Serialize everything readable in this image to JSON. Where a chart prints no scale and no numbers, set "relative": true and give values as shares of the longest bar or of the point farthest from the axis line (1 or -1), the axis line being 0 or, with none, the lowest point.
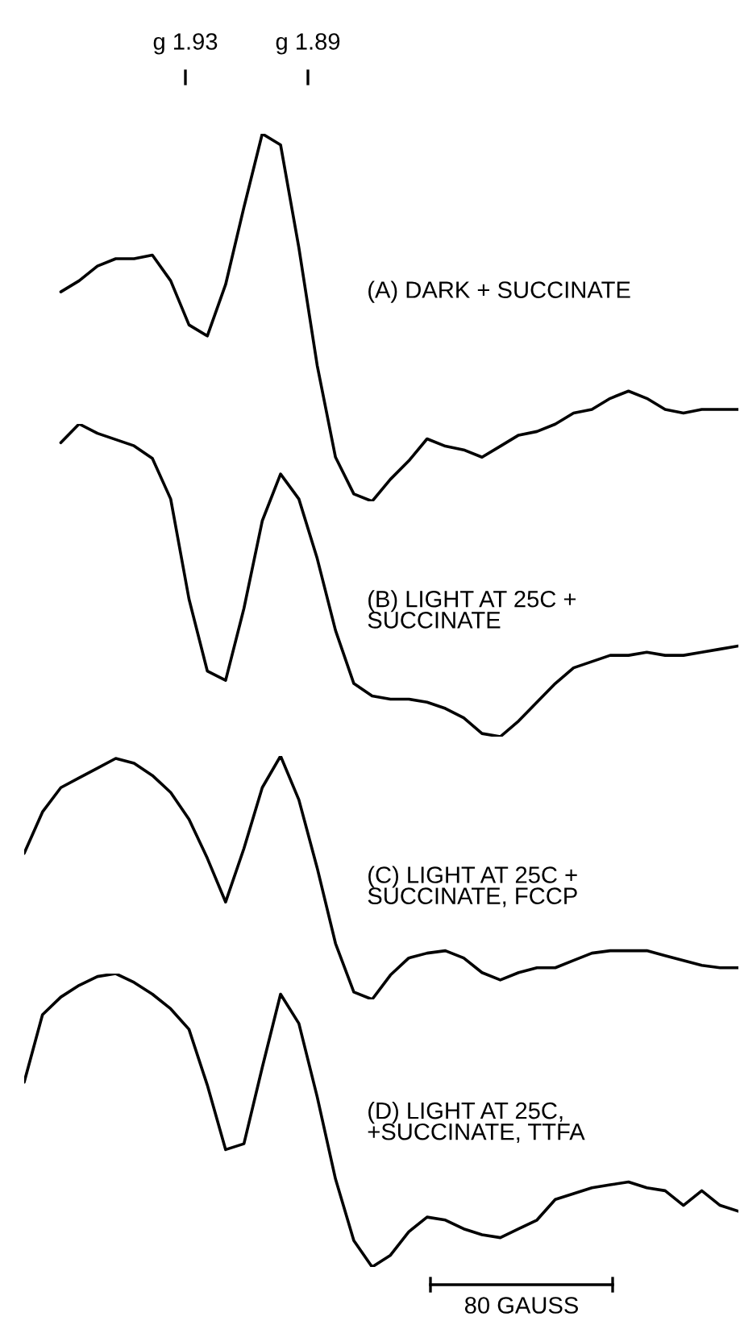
{
  "chart_data": [
    {
      "type": "line",
      "relative": true,
      "annotations": [
        "g 1.93",
        "g 1.89"
      ],
      "categories": [
        null,
        null,
        null,
        null,
        null,
        null,
        null,
        null,
        null,
        null,
        null,
        null,
        null,
        null,
        null,
        null,
        null,
        null,
        null,
        null,
        null,
        null,
        null,
        null,
        null,
        null,
        null,
        null,
        null,
        null,
        null,
        null,
        null,
        null,
        null,
        null,
        null,
        null,
        null,
        null
      ],
      "series": [
        {
          "name": "(A) DARK + SUCCINATE",
          "color": "#000000",
          "values": [
            null,
            null,
            0.57,
            0.6,
            0.64,
            0.66,
            0.66,
            0.67,
            0.6,
            0.48,
            0.45,
            0.59,
            0.8,
            1.0,
            0.97,
            0.69,
            0.37,
            0.12,
            0.02,
            0,
            0.06,
            0.11,
            0.17,
            0.15,
            0.14,
            0.12,
            0.15,
            0.18,
            0.19,
            0.21,
            0.24,
            0.25,
            0.28,
            0.3,
            0.28,
            0.25,
            0.24,
            0.25,
            0.25,
            0.25
          ]
        }
      ]
    },
    {
      "type": "line",
      "relative": true,
      "categories": [
        null,
        null,
        null,
        null,
        null,
        null,
        null,
        null,
        null,
        null,
        null,
        null,
        null,
        null,
        null,
        null,
        null,
        null,
        null,
        null,
        null,
        null,
        null,
        null,
        null,
        null,
        null,
        null,
        null,
        null,
        null,
        null,
        null,
        null,
        null,
        null,
        null,
        null,
        null,
        null
      ],
      "series": [
        {
          "name": "(B) LIGHT AT 25C +\nSUCCINATE",
          "color": "#000000",
          "values": [
            null,
            null,
            0.94,
            1.0,
            0.97,
            0.95,
            0.93,
            0.89,
            0.76,
            0.44,
            0.21,
            0.18,
            0.41,
            0.69,
            0.84,
            0.76,
            0.57,
            0.34,
            0.17,
            0.13,
            0.12,
            0.12,
            0.11,
            0.09,
            0.06,
            0.01,
            0,
            0.05,
            0.11,
            0.17,
            0.22,
            0.24,
            0.26,
            0.26,
            0.27,
            0.26,
            0.26,
            0.27,
            0.28,
            0.29
          ]
        }
      ]
    },
    {
      "type": "line",
      "relative": true,
      "categories": [
        null,
        null,
        null,
        null,
        null,
        null,
        null,
        null,
        null,
        null,
        null,
        null,
        null,
        null,
        null,
        null,
        null,
        null,
        null,
        null,
        null,
        null,
        null,
        null,
        null,
        null,
        null,
        null,
        null,
        null,
        null,
        null,
        null,
        null,
        null,
        null,
        null,
        null,
        null,
        null
      ],
      "series": [
        {
          "name": "(C) LIGHT AT 25C +\nSUCCINATE, FCCP",
          "color": "#000000",
          "values": [
            0.6,
            0.77,
            0.87,
            0.91,
            0.95,
            0.99,
            0.97,
            0.92,
            0.85,
            0.74,
            0.58,
            0.4,
            0.62,
            0.87,
            1.0,
            0.82,
            0.54,
            0.23,
            0.03,
            0,
            0.1,
            0.17,
            0.19,
            0.2,
            0.17,
            0.11,
            0.08,
            0.11,
            0.13,
            0.13,
            0.16,
            0.19,
            0.2,
            0.2,
            0.2,
            0.18,
            0.16,
            0.14,
            0.13,
            0.13
          ]
        }
      ]
    },
    {
      "type": "line",
      "relative": true,
      "annotations": [
        "80 GAUSS"
      ],
      "categories": [
        null,
        null,
        null,
        null,
        null,
        null,
        null,
        null,
        null,
        null,
        null,
        null,
        null,
        null,
        null,
        null,
        null,
        null,
        null,
        null,
        null,
        null,
        null,
        null,
        null,
        null,
        null,
        null,
        null,
        null,
        null,
        null,
        null,
        null,
        null,
        null,
        null,
        null,
        null,
        null
      ],
      "series": [
        {
          "name": "(D) LIGHT AT 25C,\n+SUCCINATE, TTFA",
          "color": "#000000",
          "values": [
            0.63,
            0.86,
            0.92,
            0.96,
            0.99,
            1.0,
            0.97,
            0.93,
            0.88,
            0.81,
            0.62,
            0.4,
            0.42,
            0.68,
            0.93,
            0.83,
            0.58,
            0.3,
            0.09,
            0,
            0.04,
            0.12,
            0.17,
            0.16,
            0.13,
            0.11,
            0.1,
            0.13,
            0.16,
            0.23,
            0.25,
            0.27,
            0.28,
            0.29,
            0.27,
            0.26,
            0.21,
            0.26,
            0.21,
            0.19
          ]
        }
      ]
    }
  ]
}
